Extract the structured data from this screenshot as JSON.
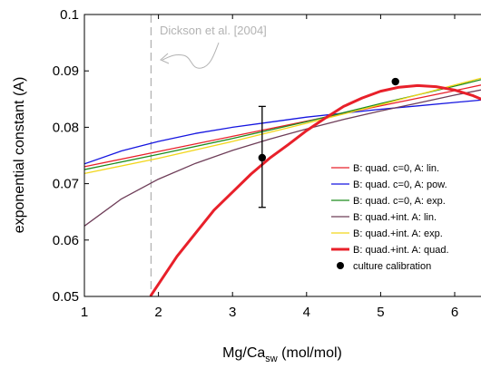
{
  "chart_data": {
    "type": "line",
    "xlabel_main": "Mg/Ca",
    "xlabel_sub": "sw",
    "xlabel_units": " (mol/mol)",
    "ylabel": "exponential constant (A)",
    "xlim": [
      1,
      6.5
    ],
    "ylim": [
      0.05,
      0.1
    ],
    "xticks": [
      1,
      2,
      3,
      4,
      5,
      6
    ],
    "yticks": [
      0.05,
      0.06,
      0.07,
      0.08,
      0.09,
      0.1
    ],
    "ytick_labels": [
      "0.05",
      "0.06",
      "0.07",
      "0.08",
      "0.09",
      "0.1"
    ],
    "grid": false,
    "legend_position": "bottom-right",
    "vline": {
      "x": 1.9,
      "color": "#b3b3b3",
      "style": "dashed"
    },
    "annotation": {
      "text": "Dickson et al. [2004]",
      "color": "#b3b3b3"
    },
    "series": [
      {
        "name": "B: quad. c=0, A: lin.",
        "color": "#e8202a",
        "width": 1.3,
        "x": [
          1,
          2,
          3,
          4,
          5,
          6,
          6.5
        ],
        "y": [
          0.073,
          0.0757,
          0.0784,
          0.0811,
          0.0838,
          0.0865,
          0.0879
        ]
      },
      {
        "name": "B: quad. c=0, A: pow.",
        "color": "#1515e0",
        "width": 1.3,
        "x": [
          1,
          1.5,
          2,
          2.5,
          3,
          3.5,
          4,
          4.5,
          5,
          5.5,
          6,
          6.5
        ],
        "y": [
          0.0735,
          0.0758,
          0.0775,
          0.0789,
          0.08,
          0.0809,
          0.0818,
          0.0825,
          0.0832,
          0.0838,
          0.0844,
          0.085
        ]
      },
      {
        "name": "B: quad. c=0,  A: exp.",
        "color": "#1e8c1e",
        "width": 1.3,
        "x": [
          1,
          2,
          3,
          4,
          5,
          6,
          6.5
        ],
        "y": [
          0.0725,
          0.0752,
          0.078,
          0.081,
          0.0842,
          0.0873,
          0.0889
        ]
      },
      {
        "name": "B: quad.+int. A: lin.",
        "color": "#6e3d58",
        "width": 1.3,
        "x": [
          1,
          1.5,
          2,
          2.5,
          3,
          3.5,
          4,
          4.5,
          5,
          5.5,
          6,
          6.5
        ],
        "y": [
          0.0625,
          0.0673,
          0.0708,
          0.0736,
          0.0759,
          0.0779,
          0.0797,
          0.0814,
          0.0829,
          0.0843,
          0.0857,
          0.087
        ]
      },
      {
        "name": "B: quad.+int. A: exp.",
        "color": "#f2d61a",
        "width": 1.3,
        "x": [
          1,
          2,
          3,
          4,
          5,
          6,
          6.5
        ],
        "y": [
          0.0718,
          0.0745,
          0.0775,
          0.0807,
          0.084,
          0.0875,
          0.0892
        ]
      },
      {
        "name": "B: quad.+int. A: quad.",
        "color": "#e8202a",
        "width": 3,
        "x": [
          1.9,
          2.25,
          2.75,
          3.25,
          3.5,
          3.75,
          4,
          4.25,
          4.5,
          4.75,
          5,
          5.25,
          5.5,
          5.75,
          6,
          6.25,
          6.5
        ],
        "y": [
          0.0502,
          0.0571,
          0.0653,
          0.0717,
          0.0745,
          0.0769,
          0.0794,
          0.0816,
          0.0837,
          0.0852,
          0.0864,
          0.0871,
          0.0874,
          0.0872,
          0.0866,
          0.0856,
          0.0842
        ]
      }
    ],
    "calibration": {
      "name": "culture calibration",
      "color": "#000000",
      "points": [
        {
          "x": 3.4,
          "y": 0.0746,
          "ylow": 0.0658,
          "yhigh": 0.0837
        },
        {
          "x": 5.2,
          "y": 0.0881,
          "ylow": null,
          "yhigh": null
        }
      ]
    }
  }
}
